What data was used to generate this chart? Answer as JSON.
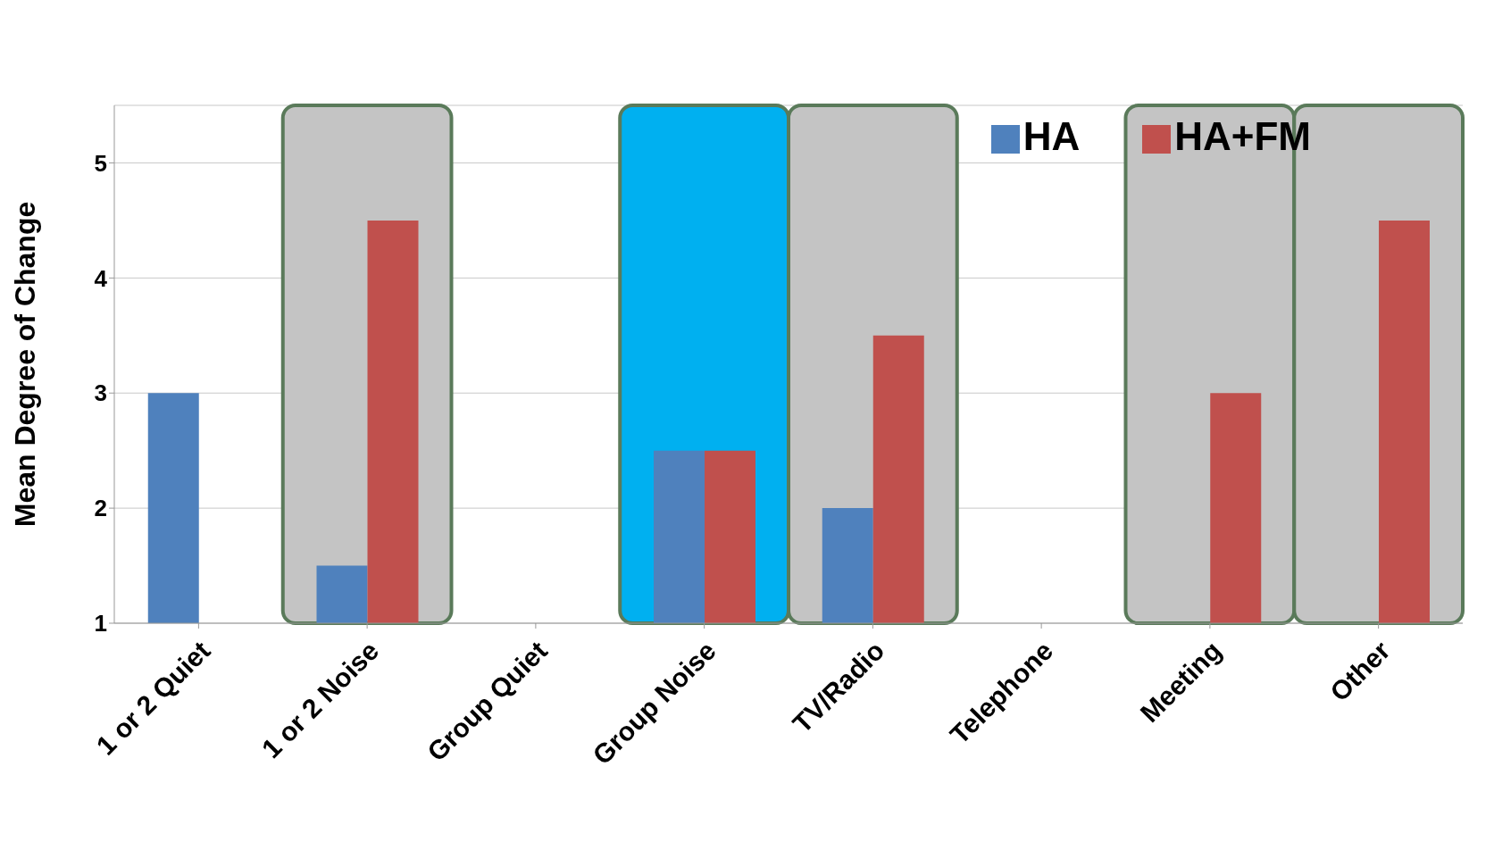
{
  "chart_data": {
    "type": "bar",
    "ylabel": "Mean Degree of Change",
    "categories": [
      "1 or 2 Quiet",
      "1 or 2 Noise",
      "Group Quiet",
      "Group Noise",
      "TV/Radio",
      "Telephone",
      "Meeting",
      "Other"
    ],
    "series": [
      {
        "name": "HA",
        "color": "#4f81bd",
        "values": [
          3,
          1.5,
          null,
          2.5,
          2,
          null,
          null,
          null
        ]
      },
      {
        "name": "HA+FM",
        "color": "#c0504d",
        "values": [
          null,
          4.5,
          null,
          2.5,
          3.5,
          null,
          3,
          4.5
        ]
      }
    ],
    "ylim": [
      1,
      5.5
    ],
    "yticks": [
      1,
      2,
      3,
      4,
      5
    ],
    "grid": "y",
    "legend": "top right",
    "bands": [
      {
        "axis": "x",
        "from": "1 or 2 Noise",
        "to": "1 or 2 Noise",
        "color": "#c4c4c4"
      },
      {
        "axis": "x",
        "from": "Group Noise",
        "to": "Group Noise",
        "color": "#00b0f0"
      },
      {
        "axis": "x",
        "from": "TV/Radio",
        "to": "TV/Radio",
        "color": "#c4c4c4"
      },
      {
        "axis": "x",
        "from": "Meeting",
        "to": "Meeting",
        "color": "#c4c4c4"
      },
      {
        "axis": "x",
        "from": "Other",
        "to": "Other",
        "color": "#c4c4c4"
      }
    ]
  }
}
